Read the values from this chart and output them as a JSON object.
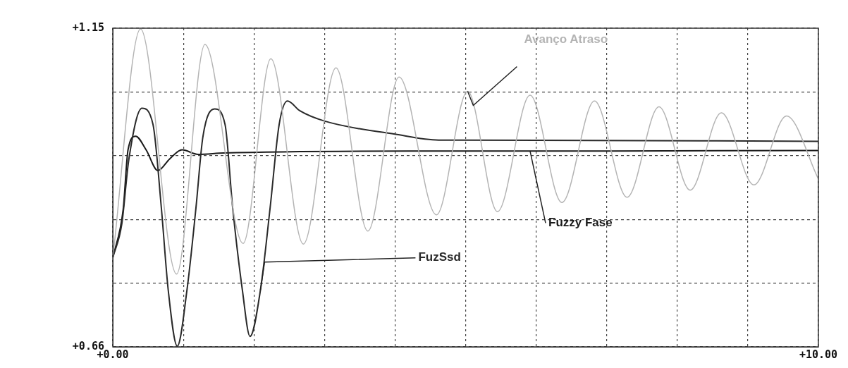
{
  "chart_data": {
    "type": "line",
    "xlim": [
      0,
      10
    ],
    "ylim": [
      0.66,
      1.15
    ],
    "xticks": [
      {
        "value": 0,
        "label": "+0.00"
      },
      {
        "value": 1,
        "label": null
      },
      {
        "value": 2,
        "label": null
      },
      {
        "value": 3,
        "label": null
      },
      {
        "value": 4,
        "label": null
      },
      {
        "value": 5,
        "label": null
      },
      {
        "value": 6,
        "label": null
      },
      {
        "value": 7,
        "label": null
      },
      {
        "value": 8,
        "label": null
      },
      {
        "value": 9,
        "label": null
      },
      {
        "value": 10,
        "label": "+10.00"
      }
    ],
    "yticks": [
      {
        "value": 0.66,
        "label": "+0.66"
      },
      {
        "value": 0.758,
        "label": null
      },
      {
        "value": 0.856,
        "label": null
      },
      {
        "value": 0.954,
        "label": null
      },
      {
        "value": 1.052,
        "label": null
      },
      {
        "value": 1.15,
        "label": "+1.15"
      }
    ],
    "grid": true,
    "marker": "none",
    "line_style": "solid",
    "series": [
      {
        "name": "Avanço Atraso",
        "color": "#b4b4b4",
        "x": [
          0,
          0.393,
          0.904,
          1.306,
          1.847,
          2.24,
          2.701,
          3.163,
          3.615,
          4.057,
          4.587,
          5.029,
          5.452,
          5.914,
          6.365,
          6.827,
          7.289,
          7.741,
          8.183,
          8.625,
          9.086,
          9.548,
          10
        ],
        "values": [
          0.797,
          1.149,
          0.772,
          1.125,
          0.819,
          1.103,
          0.818,
          1.089,
          0.838,
          1.075,
          0.863,
          1.053,
          0.868,
          1.047,
          0.882,
          1.038,
          0.89,
          1.029,
          0.901,
          1.02,
          0.909,
          1.015,
          0.918
        ]
      },
      {
        "name": "FuzSsd",
        "color": "#2a2a2a",
        "x": [
          0,
          0.128,
          0.226,
          0.413,
          0.57,
          0.688,
          0.786,
          0.914,
          1.051,
          1.179,
          1.277,
          1.444,
          1.591,
          1.699,
          1.837,
          1.945,
          2.092,
          2.23,
          2.358,
          2.475,
          2.652,
          3.006,
          3.998,
          4.617,
          4.941,
          10
        ],
        "values": [
          0.797,
          0.849,
          0.947,
          1.027,
          1.002,
          0.874,
          0.747,
          0.661,
          0.747,
          0.874,
          0.983,
          1.026,
          1.002,
          0.874,
          0.747,
          0.676,
          0.747,
          0.874,
          1.002,
          1.038,
          1.023,
          1.007,
          0.987,
          0.978,
          0.978,
          0.976
        ]
      },
      {
        "name": "Fuzzy Fase",
        "color": "#1a1a1a",
        "x": [
          0,
          0.147,
          0.216,
          0.324,
          0.472,
          0.639,
          0.806,
          0.982,
          1.208,
          1.572,
          4.224,
          5.914,
          10
        ],
        "values": [
          0.797,
          0.871,
          0.963,
          0.984,
          0.963,
          0.931,
          0.949,
          0.963,
          0.956,
          0.958,
          0.961,
          0.961,
          0.962
        ]
      }
    ]
  }
}
